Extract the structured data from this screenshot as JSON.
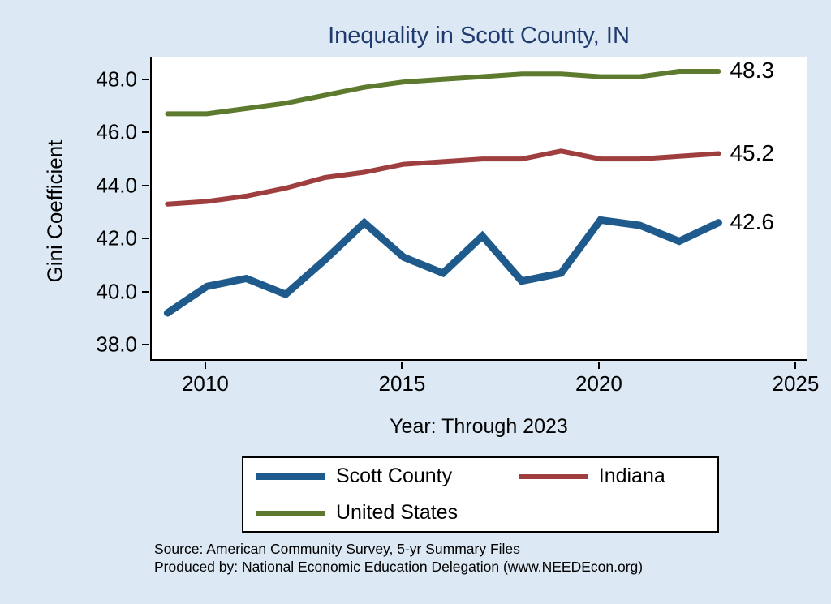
{
  "title": "Inequality in Scott County, IN",
  "ylabel": "Gini Coefficient",
  "xlabel": "Year: Through 2023",
  "source": {
    "line1": "Source: American Community Survey, 5-yr Summary Files",
    "line2": "Produced by: National Economic Education Delegation (www.NEEDEcon.org)"
  },
  "colors": {
    "background": "#dce8f3",
    "plot_background": "#ffffff",
    "title": "#1f3a6e",
    "axis": "#000000",
    "scott_county": "#1e5b8c",
    "indiana": "#9e3e3e",
    "united_states": "#5e7a2f"
  },
  "chart_data": {
    "type": "line",
    "title": "Inequality in Scott County, IN",
    "xlabel": "Year: Through 2023",
    "ylabel": "Gini Coefficient",
    "grid": false,
    "legend_position": "bottom",
    "xlim": [
      2008.6,
      2025.3
    ],
    "ylim": [
      37.4,
      48.85
    ],
    "xticks": [
      2010,
      2015,
      2020,
      2025
    ],
    "yticks": [
      38.0,
      40.0,
      42.0,
      44.0,
      46.0,
      48.0
    ],
    "x": [
      2009,
      2010,
      2011,
      2012,
      2013,
      2014,
      2015,
      2016,
      2017,
      2018,
      2019,
      2020,
      2021,
      2022,
      2023
    ],
    "series": [
      {
        "name": "Scott County",
        "color": "#1e5b8c",
        "line_width": 9,
        "end_label": "42.6",
        "values": [
          39.2,
          40.2,
          40.5,
          39.9,
          41.2,
          42.6,
          41.3,
          40.7,
          42.1,
          40.4,
          40.7,
          42.7,
          42.5,
          41.9,
          42.6
        ]
      },
      {
        "name": "Indiana",
        "color": "#9e3e3e",
        "line_width": 6,
        "end_label": "45.2",
        "values": [
          43.3,
          43.4,
          43.6,
          43.9,
          44.3,
          44.5,
          44.8,
          44.9,
          45.0,
          45.0,
          45.3,
          45.0,
          45.0,
          45.1,
          45.2
        ]
      },
      {
        "name": "United States",
        "color": "#5e7a2f",
        "line_width": 6,
        "end_label": "48.3",
        "values": [
          46.7,
          46.7,
          46.9,
          47.1,
          47.4,
          47.7,
          47.9,
          48.0,
          48.1,
          48.2,
          48.2,
          48.1,
          48.1,
          48.3,
          48.3
        ]
      }
    ]
  }
}
